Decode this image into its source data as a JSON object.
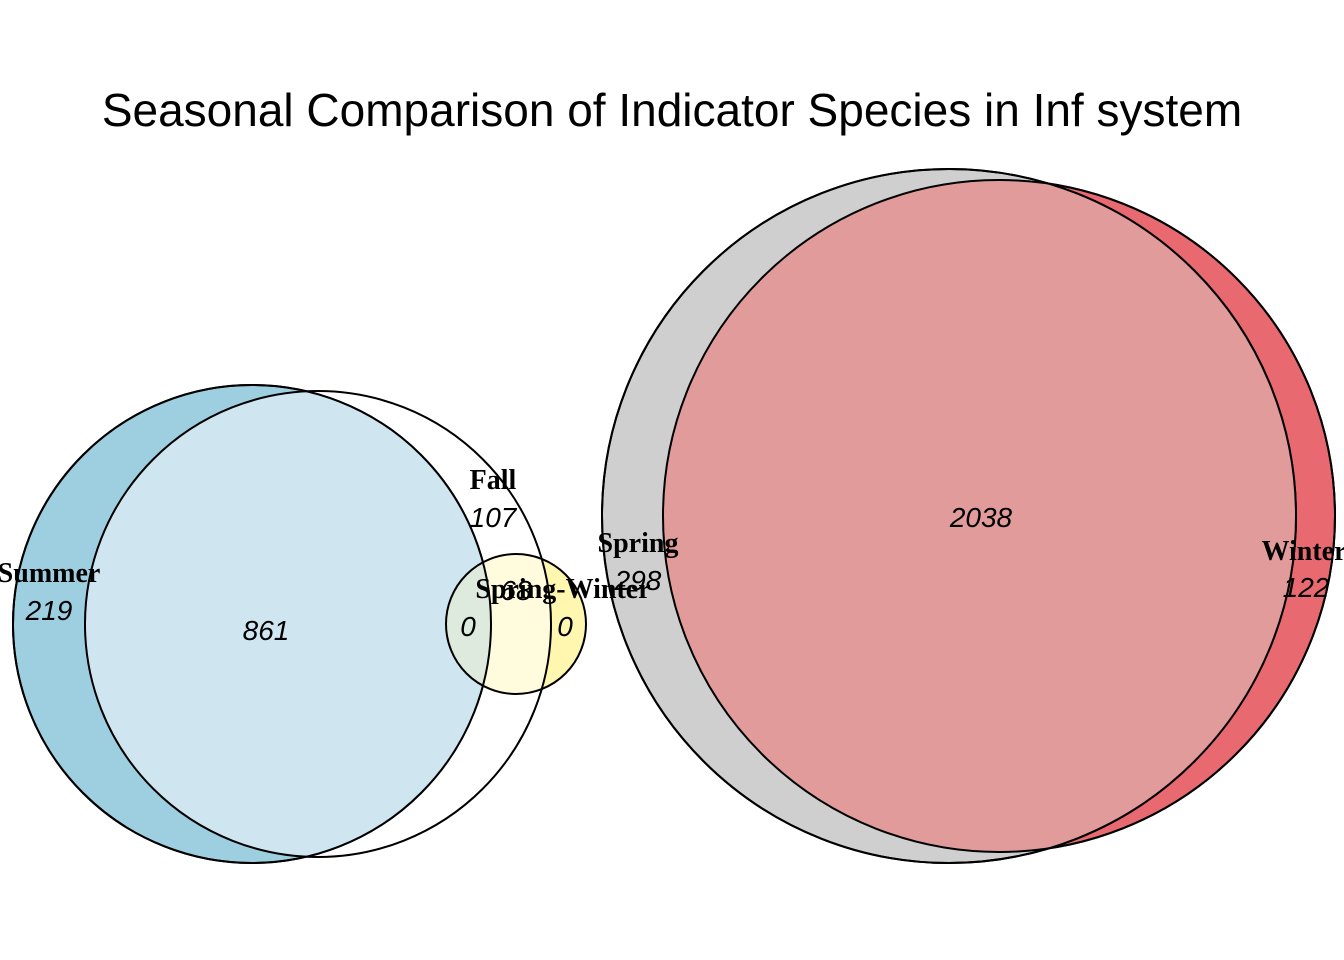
{
  "chart_data": {
    "type": "venn",
    "title": "Seasonal Comparison of Indicator Species in Inf system",
    "sets": [
      {
        "name": "Summer",
        "only": "219",
        "color": "#9ecfe0"
      },
      {
        "name": "Fall",
        "only": "107",
        "color": "#ffffff"
      },
      {
        "name": "Spring-Winter",
        "color": "#fff7b0"
      },
      {
        "name": "Spring",
        "only": "298",
        "color": "#cfcfcf"
      },
      {
        "name": "Winter",
        "only": "122",
        "color": "#e86a70"
      }
    ],
    "intersections": [
      {
        "sets": [
          "Summer",
          "Fall"
        ],
        "value": "861",
        "color": "#cfe6f0"
      },
      {
        "sets": [
          "Fall",
          "Spring-Winter"
        ],
        "value": "68"
      },
      {
        "sets": [
          "Summer",
          "Fall",
          "Spring-Winter"
        ],
        "value": "0",
        "color": "#dfeadf"
      },
      {
        "sets": [
          "Spring-Winter"
        ],
        "value": "0"
      },
      {
        "sets": [
          "Spring",
          "Winter"
        ],
        "value": "2038",
        "color": "#e29b9b"
      }
    ]
  }
}
